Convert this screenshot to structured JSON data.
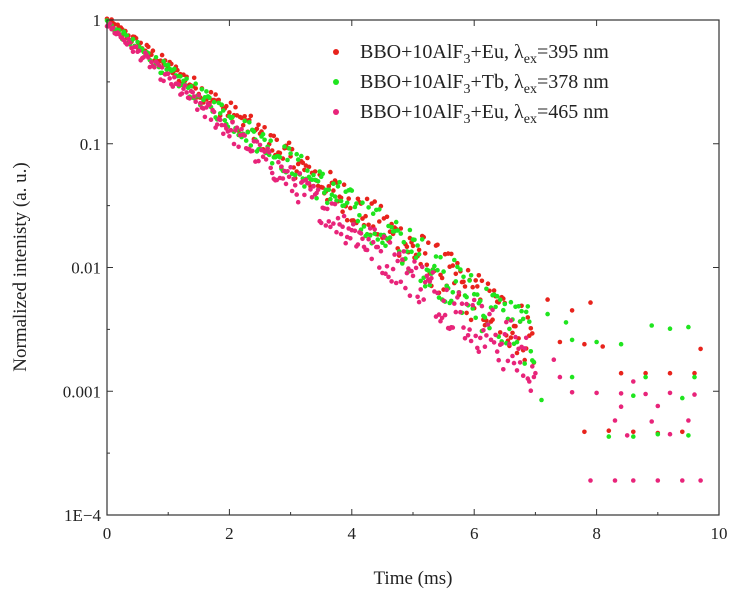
{
  "chart_data": {
    "type": "scatter",
    "xlabel": "Time (ms)",
    "ylabel": "Normalized intenisty (a. u.)",
    "xlim": [
      0,
      10
    ],
    "ylim": [
      0.0001,
      1
    ],
    "yscale": "log",
    "grid": false,
    "legend_position": "top-right",
    "x_ticks": [
      0,
      2,
      4,
      6,
      8,
      10
    ],
    "x_tick_labels": [
      "0",
      "2",
      "4",
      "6",
      "8",
      "10"
    ],
    "y_ticks": [
      1,
      0.1,
      0.01,
      0.001,
      0.0001
    ],
    "y_tick_labels": [
      "1",
      "0.1",
      "0.01",
      "0.001",
      "1E−4"
    ],
    "legend": [
      {
        "main": "BBO+10AlF",
        "sub1": "3",
        "mid": "+Eu, λ",
        "sub2": "ex",
        "tail": "=395 nm",
        "color": "#e8231c"
      },
      {
        "main": "BBO+10AlF",
        "sub1": "3",
        "mid": "+Tb, λ",
        "sub2": "ex",
        "tail": "=378 nm",
        "color": "#1fe51f"
      },
      {
        "main": "BBO+10AlF",
        "sub1": "3",
        "mid": "+Eu, λ",
        "sub2": "ex",
        "tail": "=465 nm",
        "color": "#e8247a"
      }
    ],
    "series": [
      {
        "name": "BBO+10AlF3+Eu, λex=395 nm",
        "color": "#e8231c",
        "decay_points": [
          [
            0,
            1.0
          ],
          [
            1,
            0.42
          ],
          [
            2,
            0.18
          ],
          [
            3,
            0.075
          ],
          [
            4,
            0.032
          ],
          [
            5,
            0.014
          ],
          [
            6,
            0.0058
          ],
          [
            7,
            0.0026
          ]
        ],
        "tail_points": [
          [
            7.2,
            0.0055
          ],
          [
            7.6,
            0.0045
          ],
          [
            7.9,
            0.0052
          ],
          [
            7.4,
            0.0025
          ],
          [
            7.8,
            0.0024
          ],
          [
            8.1,
            0.0023
          ],
          [
            8.4,
            0.0014
          ],
          [
            8.8,
            0.0014
          ],
          [
            9.2,
            0.0014
          ],
          [
            9.6,
            0.0014
          ],
          [
            8.2,
            0.00048
          ],
          [
            8.6,
            0.00047
          ],
          [
            9.0,
            0.00046
          ],
          [
            9.4,
            0.00047
          ],
          [
            7.8,
            0.00047
          ],
          [
            9.7,
            0.0022
          ]
        ]
      },
      {
        "name": "BBO+10AlF3+Tb, λex=378 nm",
        "color": "#1fe51f",
        "decay_points": [
          [
            0,
            0.95
          ],
          [
            1,
            0.38
          ],
          [
            2,
            0.16
          ],
          [
            3,
            0.07
          ],
          [
            4,
            0.03
          ],
          [
            5,
            0.013
          ],
          [
            6,
            0.0055
          ],
          [
            7,
            0.0025
          ]
        ],
        "tail_points": [
          [
            7.2,
            0.0042
          ],
          [
            7.5,
            0.0036
          ],
          [
            7.6,
            0.0026
          ],
          [
            8.0,
            0.0025
          ],
          [
            8.4,
            0.0024
          ],
          [
            8.9,
            0.0034
          ],
          [
            9.2,
            0.0032
          ],
          [
            9.5,
            0.0033
          ],
          [
            7.1,
            0.00085
          ],
          [
            8.6,
            0.00092
          ],
          [
            9.4,
            0.00088
          ],
          [
            8.2,
            0.00043
          ],
          [
            8.6,
            0.00043
          ],
          [
            9.0,
            0.00045
          ],
          [
            9.5,
            0.00044
          ],
          [
            7.6,
            0.0013
          ],
          [
            8.8,
            0.0013
          ],
          [
            9.6,
            0.0013
          ]
        ]
      },
      {
        "name": "BBO+10AlF3+Eu, λex=465 nm",
        "color": "#e8247a",
        "decay_points": [
          [
            0,
            0.93
          ],
          [
            1,
            0.33
          ],
          [
            2,
            0.13
          ],
          [
            3,
            0.05
          ],
          [
            4,
            0.02
          ],
          [
            5,
            0.0085
          ],
          [
            6,
            0.0036
          ],
          [
            7,
            0.0016
          ]
        ],
        "tail_points": [
          [
            7.0,
            0.0014
          ],
          [
            7.4,
            0.0013
          ],
          [
            7.6,
            0.00098
          ],
          [
            8.0,
            0.00097
          ],
          [
            8.4,
            0.00096
          ],
          [
            8.8,
            0.00095
          ],
          [
            9.2,
            0.00097
          ],
          [
            9.6,
            0.00094
          ],
          [
            7.3,
            0.0018
          ],
          [
            8.6,
            0.0012
          ],
          [
            8.4,
            0.00075
          ],
          [
            9.0,
            0.00076
          ],
          [
            8.3,
            0.00058
          ],
          [
            8.9,
            0.00057
          ],
          [
            9.5,
            0.00058
          ],
          [
            8.5,
            0.00044
          ],
          [
            9.2,
            0.00045
          ],
          [
            7.9,
            0.00019
          ],
          [
            8.3,
            0.00019
          ],
          [
            8.6,
            0.00019
          ],
          [
            9.0,
            0.00019
          ],
          [
            9.4,
            0.00019
          ],
          [
            9.7,
            0.00019
          ]
        ]
      }
    ]
  }
}
